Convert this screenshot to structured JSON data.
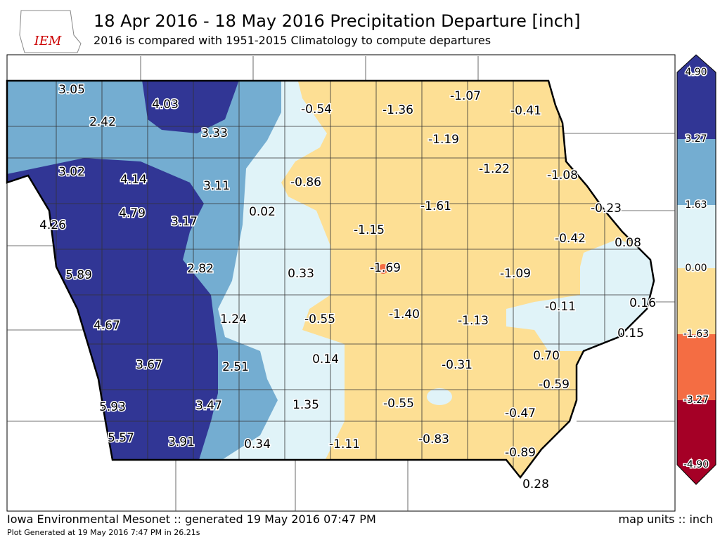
{
  "header": {
    "logo": "IEM",
    "title": "18 Apr 2016 - 18 May 2016 Precipitation Departure [inch]",
    "subtitle": "2016 is compared with 1951-2015 Climatology to compute departures"
  },
  "stations": [
    "3.05",
    "4.03",
    "2.42",
    "3.33",
    "3.02",
    "4.14",
    "3.11",
    "4.26",
    "4.79",
    "3.17",
    "5.89",
    "2.82",
    "4.67",
    "1.24",
    "3.67",
    "2.51",
    "5.93",
    "3.47",
    "5.57",
    "3.91",
    "0.34",
    "1.35",
    "0.14",
    "0.33",
    "0.02",
    "-0.86",
    "-0.54",
    "-1.36",
    "-1.07",
    "-0.41",
    "-1.19",
    "-1.22",
    "-1.08",
    "-1.61",
    "-0.23",
    "-1.15",
    "-0.42",
    "0.08",
    "-1.69",
    "-1.09",
    "-0.55",
    "-1.40",
    "-1.13",
    "-0.11",
    "0.16",
    "0.15",
    "0.70",
    "-0.31",
    "-0.59",
    "-0.55",
    "-0.47",
    "-1.11",
    "-0.83",
    "-0.89",
    "0.28"
  ],
  "legend": {
    "labels": [
      "4.90",
      "3.27",
      "1.63",
      "0.00",
      "-1.63",
      "-3.27",
      "-4.90"
    ]
  },
  "footer": {
    "left": "Iowa Environmental Mesonet :: generated 19 May 2016 07:47 PM",
    "right": "map units :: inch",
    "small": "Plot Generated at 19 May 2016 7:47 PM in 26.21s"
  }
}
